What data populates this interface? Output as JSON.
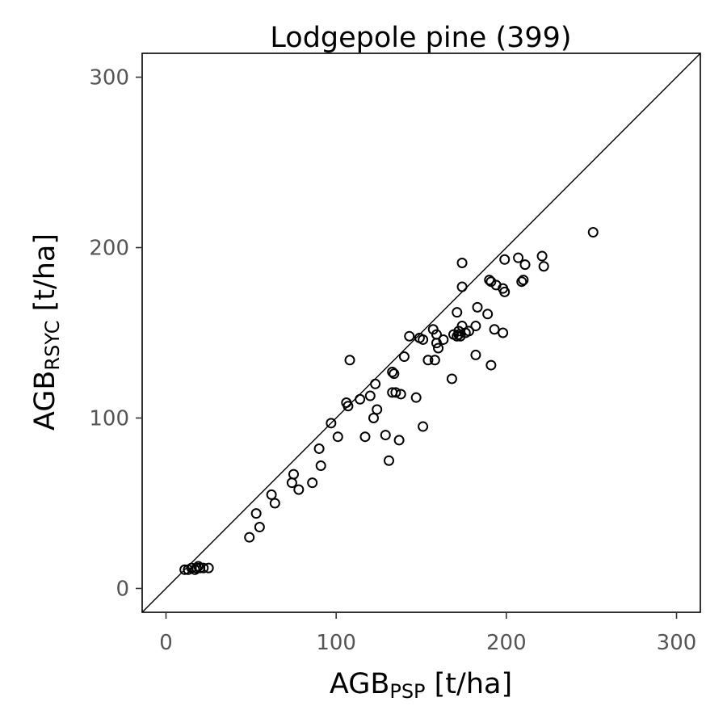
{
  "chart_data": {
    "type": "scatter",
    "title": "Lodgepole pine (399)",
    "xlabel": {
      "main": "AGB",
      "sub": "PSP",
      "unit": " [t/ha]"
    },
    "ylabel": {
      "main": "AGB",
      "sub": "RSYC",
      "unit": " [t/ha]"
    },
    "xlim": [
      -14,
      314
    ],
    "ylim": [
      -14,
      314
    ],
    "xticks": [
      0,
      100,
      200,
      300
    ],
    "yticks": [
      0,
      100,
      200,
      300
    ],
    "xtick_labels": [
      "0",
      "100",
      "200",
      "300"
    ],
    "ytick_labels": [
      "0",
      "100",
      "200",
      "300"
    ],
    "reference_line": "y = x",
    "grid": false,
    "marker": "open-circle",
    "points": [
      [
        11,
        11
      ],
      [
        13,
        11
      ],
      [
        15,
        12
      ],
      [
        17,
        11
      ],
      [
        18,
        12
      ],
      [
        19,
        13
      ],
      [
        20,
        12
      ],
      [
        22,
        12
      ],
      [
        25,
        12
      ],
      [
        49,
        30
      ],
      [
        53,
        44
      ],
      [
        55,
        36
      ],
      [
        62,
        55
      ],
      [
        64,
        50
      ],
      [
        74,
        62
      ],
      [
        75,
        67
      ],
      [
        78,
        58
      ],
      [
        86,
        62
      ],
      [
        90,
        82
      ],
      [
        91,
        72
      ],
      [
        97,
        97
      ],
      [
        101,
        89
      ],
      [
        106,
        109
      ],
      [
        107,
        107
      ],
      [
        108,
        134
      ],
      [
        114,
        111
      ],
      [
        117,
        89
      ],
      [
        120,
        113
      ],
      [
        122,
        100
      ],
      [
        123,
        120
      ],
      [
        124,
        105
      ],
      [
        129,
        90
      ],
      [
        131,
        75
      ],
      [
        133,
        127
      ],
      [
        133,
        115
      ],
      [
        134,
        126
      ],
      [
        135,
        115
      ],
      [
        137,
        87
      ],
      [
        138,
        114
      ],
      [
        140,
        136
      ],
      [
        143,
        148
      ],
      [
        147,
        112
      ],
      [
        149,
        147
      ],
      [
        151,
        95
      ],
      [
        151,
        146
      ],
      [
        154,
        134
      ],
      [
        157,
        152
      ],
      [
        158,
        134
      ],
      [
        159,
        144
      ],
      [
        159,
        149
      ],
      [
        160,
        141
      ],
      [
        163,
        146
      ],
      [
        168,
        123
      ],
      [
        169,
        149
      ],
      [
        171,
        148
      ],
      [
        171,
        162
      ],
      [
        172,
        149
      ],
      [
        172,
        151
      ],
      [
        173,
        148
      ],
      [
        174,
        177
      ],
      [
        174,
        154
      ],
      [
        174,
        191
      ],
      [
        176,
        150
      ],
      [
        178,
        151
      ],
      [
        182,
        137
      ],
      [
        182,
        154
      ],
      [
        183,
        165
      ],
      [
        189,
        161
      ],
      [
        190,
        181
      ],
      [
        191,
        131
      ],
      [
        191,
        180
      ],
      [
        193,
        152
      ],
      [
        194,
        178
      ],
      [
        198,
        150
      ],
      [
        198,
        176
      ],
      [
        199,
        174
      ],
      [
        199,
        193
      ],
      [
        207,
        194
      ],
      [
        209,
        180
      ],
      [
        210,
        181
      ],
      [
        211,
        190
      ],
      [
        221,
        195
      ],
      [
        222,
        189
      ],
      [
        251,
        209
      ]
    ]
  }
}
